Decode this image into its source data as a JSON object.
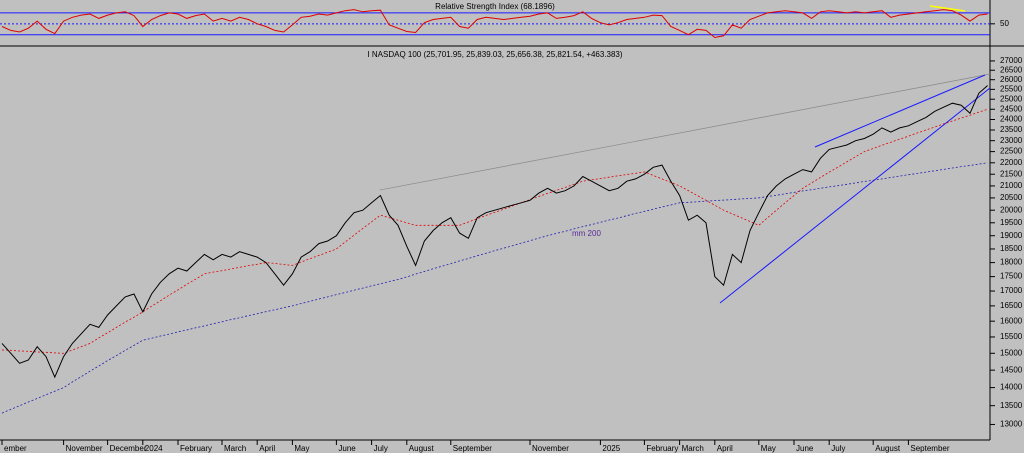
{
  "chart_data": [
    {
      "type": "line",
      "title": "Relative Strength Index (68.1896)",
      "series": [
        {
          "color": "#e00000",
          "values": [
            45,
            38,
            35,
            42,
            55,
            40,
            32,
            55,
            62,
            66,
            68,
            60,
            66,
            70,
            72,
            65,
            45,
            58,
            65,
            70,
            68,
            60,
            65,
            68,
            55,
            60,
            55,
            62,
            58,
            50,
            45,
            38,
            35,
            48,
            62,
            64,
            68,
            66,
            70,
            74,
            76,
            72,
            74,
            75,
            48,
            42,
            36,
            34,
            52,
            58,
            60,
            62,
            45,
            42,
            58,
            62,
            60,
            58,
            60,
            62,
            64,
            68,
            70,
            60,
            62,
            65,
            72,
            60,
            52,
            48,
            52,
            58,
            60,
            62,
            66,
            65,
            45,
            38,
            30,
            40,
            38,
            25,
            28,
            48,
            42,
            58,
            64,
            70,
            72,
            74,
            72,
            70,
            60,
            72,
            74,
            72,
            70,
            72,
            70,
            72,
            74,
            62,
            66,
            68,
            70,
            72,
            74,
            76,
            74,
            66,
            55,
            66,
            68
          ]
        }
      ],
      "ylim": [
        13,
        90
      ],
      "yticks": [
        50
      ],
      "levels": [
        30,
        50,
        70
      ]
    },
    {
      "type": "line",
      "title": "I NASDAQ 100 (25,701.95, 25,839.03, 25,656.38, 25,821.54, +463.383)",
      "categories": [
        "ember",
        null,
        null,
        null,
        null,
        null,
        null,
        "November",
        null,
        null,
        null,
        null,
        "December",
        null,
        null,
        null,
        "2024",
        null,
        null,
        null,
        "February",
        null,
        null,
        null,
        null,
        "March",
        null,
        null,
        null,
        "April",
        null,
        null,
        null,
        "May",
        null,
        null,
        null,
        null,
        "June",
        null,
        null,
        null,
        "July",
        null,
        null,
        null,
        "August",
        null,
        null,
        null,
        null,
        "September",
        null,
        null,
        null,
        null,
        null,
        null,
        null,
        null,
        "November",
        null,
        null,
        null,
        null,
        null,
        null,
        null,
        "2025",
        null,
        null,
        null,
        null,
        "February",
        null,
        null,
        null,
        "March",
        null,
        null,
        null,
        "April",
        null,
        null,
        null,
        null,
        "May",
        null,
        null,
        null,
        "June",
        null,
        null,
        null,
        "July",
        null,
        null,
        null,
        null,
        "August",
        null,
        null,
        null,
        "September",
        null,
        null,
        null,
        null,
        null,
        null,
        null,
        null,
        null
      ],
      "series": [
        {
          "color": "#000000",
          "values": [
            15300,
            15000,
            14700,
            14800,
            15200,
            14900,
            14300,
            14900,
            15300,
            15600,
            15900,
            15800,
            16200,
            16500,
            16800,
            16900,
            16300,
            16900,
            17300,
            17600,
            17800,
            17700,
            18000,
            18300,
            18100,
            18300,
            18200,
            18400,
            18300,
            18200,
            18000,
            17600,
            17200,
            17600,
            18200,
            18400,
            18700,
            18800,
            19000,
            19500,
            19900,
            20000,
            20300,
            20600,
            19800,
            19400,
            18600,
            17900,
            18800,
            19200,
            19500,
            19700,
            19100,
            18900,
            19700,
            19900,
            20000,
            20100,
            20200,
            20300,
            20400,
            20700,
            20900,
            20700,
            20800,
            21000,
            21400,
            21200,
            21000,
            20800,
            20900,
            21200,
            21300,
            21500,
            21800,
            21900,
            21200,
            20600,
            19600,
            19800,
            19500,
            17500,
            17200,
            18300,
            18000,
            19200,
            19900,
            20600,
            21000,
            21300,
            21500,
            21700,
            21600,
            22200,
            22600,
            22700,
            22800,
            23000,
            23100,
            23300,
            23600,
            23400,
            23600,
            23700,
            23900,
            24100,
            24400,
            24600,
            24800,
            24700,
            24300,
            25300,
            25700
          ]
        },
        {
          "color": "#e00000",
          "dashed": true,
          "values": [
            15100,
            15090,
            15070,
            15060,
            15040,
            15030,
            15010,
            15000,
            15100,
            15200,
            15300,
            15470,
            15630,
            15800,
            15970,
            16130,
            16300,
            16490,
            16670,
            16860,
            17040,
            17230,
            17410,
            17600,
            17660,
            17710,
            17770,
            17830,
            17890,
            17940,
            18000,
            17970,
            17930,
            17900,
            18020,
            18140,
            18260,
            18380,
            18500,
            18760,
            19020,
            19280,
            19540,
            19800,
            19700,
            19600,
            19500,
            19400,
            19400,
            19400,
            19400,
            19400,
            19400,
            19530,
            19660,
            19790,
            19910,
            20040,
            20170,
            20300,
            20430,
            20560,
            20690,
            20810,
            20940,
            21070,
            21200,
            21260,
            21310,
            21370,
            21430,
            21490,
            21540,
            21600,
            21450,
            21300,
            21150,
            21000,
            20800,
            20600,
            20400,
            20200,
            20000,
            19850,
            19700,
            19550,
            19400,
            19700,
            20000,
            20300,
            20600,
            20900,
            21130,
            21360,
            21590,
            21810,
            22040,
            22270,
            22500,
            22640,
            22790,
            22930,
            23070,
            23210,
            23360,
            23500,
            23640,
            23790,
            23930,
            24070,
            24210,
            24360,
            24500
          ]
        },
        {
          "color": "#2020b0",
          "dashed": true,
          "values": [
            13300,
            13400,
            13500,
            13600,
            13700,
            13800,
            13900,
            14000,
            14160,
            14310,
            14470,
            14620,
            14780,
            14930,
            15090,
            15240,
            15400,
            15460,
            15530,
            15590,
            15660,
            15720,
            15790,
            15850,
            15920,
            15980,
            16050,
            16110,
            16180,
            16240,
            16310,
            16370,
            16440,
            16500,
            16580,
            16650,
            16730,
            16800,
            16880,
            16950,
            17030,
            17100,
            17180,
            17250,
            17330,
            17400,
            17490,
            17590,
            17680,
            17780,
            17870,
            17960,
            18060,
            18150,
            18250,
            18340,
            18440,
            18530,
            18620,
            18720,
            18810,
            18910,
            19000,
            19090,
            19170,
            19260,
            19350,
            19430,
            19520,
            19610,
            19690,
            19780,
            19870,
            19950,
            20040,
            20130,
            20210,
            20300,
            20320,
            20340,
            20370,
            20390,
            20410,
            20430,
            20460,
            20480,
            20500,
            20560,
            20610,
            20670,
            20730,
            20790,
            20840,
            20900,
            20960,
            21010,
            21070,
            21130,
            21190,
            21240,
            21300,
            21360,
            21420,
            21480,
            21530,
            21590,
            21650,
            21710,
            21770,
            21830,
            21880,
            21940,
            22000
          ]
        }
      ],
      "annotation": "mm 200",
      "log_scale": true,
      "ylim": [
        12600,
        27600
      ],
      "yticks": [
        13000,
        13500,
        14000,
        14500,
        15000,
        15500,
        16000,
        16500,
        17000,
        17500,
        18000,
        18500,
        19000,
        19500,
        20000,
        20500,
        21000,
        21500,
        22000,
        22500,
        23000,
        23500,
        24000,
        24500,
        25000,
        25500,
        26000,
        26500,
        27000
      ]
    }
  ]
}
